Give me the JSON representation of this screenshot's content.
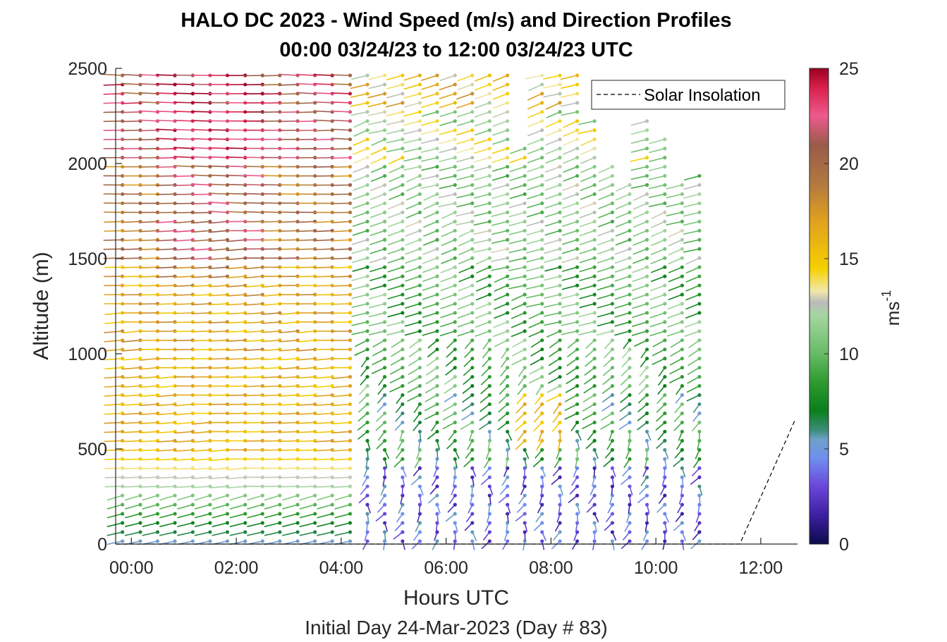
{
  "chart_data": {
    "type": "scatter",
    "subtype": "wind-barb-profile",
    "title_line1": "HALO DC 2023 - Wind Speed (m/s) and Direction Profiles",
    "title_line2": "00:00 03/24/23 to 12:00 03/24/23  UTC",
    "xlabel": "Hours UTC",
    "ylabel": "Altitude (m)",
    "subtitle": "Initial Day 24-Mar-2023 (Day # 83)",
    "colorbar_label": "ms",
    "colorbar_label_exp": "-1",
    "xlim": [
      -0.3,
      12.7
    ],
    "ylim": [
      0,
      2500
    ],
    "x_ticks": [
      "00:00",
      "02:00",
      "04:00",
      "06:00",
      "08:00",
      "10:00",
      "12:00"
    ],
    "x_tick_values": [
      0,
      2,
      4,
      6,
      8,
      10,
      12
    ],
    "y_ticks": [
      "0",
      "500",
      "1000",
      "1500",
      "2000",
      "2500"
    ],
    "y_tick_values": [
      0,
      500,
      1000,
      1500,
      2000,
      2500
    ],
    "colorbar_ticks": [
      "0",
      "5",
      "10",
      "15",
      "20",
      "25"
    ],
    "colorbar_tick_values": [
      0,
      5,
      10,
      15,
      20,
      25
    ],
    "colorbar_range": [
      0,
      25
    ],
    "grid": false,
    "legend": {
      "entries": [
        "Solar Insolation"
      ],
      "placement": "top-right",
      "style": "dashed-black"
    },
    "solar_insolation": {
      "x": [
        -0.3,
        11.6,
        12.65
      ],
      "y": [
        0,
        0,
        650
      ]
    },
    "profile_times_hours": [
      -0.17,
      0.17,
      0.5,
      0.83,
      1.17,
      1.5,
      1.83,
      2.17,
      2.5,
      2.83,
      3.17,
      3.5,
      3.83,
      4.17,
      4.5,
      4.83,
      5.17,
      5.5,
      5.83,
      6.17,
      6.5,
      6.83,
      7.17,
      7.5,
      7.83,
      8.17,
      8.5,
      8.83,
      9.17,
      9.5,
      9.83,
      10.17,
      10.5,
      10.83
    ],
    "range_gates_m": {
      "start": 15,
      "step": 48,
      "count": 52
    },
    "top_altitude_m": [
      2480,
      2480,
      2480,
      2480,
      2480,
      2480,
      2480,
      2480,
      2480,
      2480,
      2480,
      2480,
      2480,
      2480,
      2480,
      2480,
      2480,
      2480,
      2480,
      2480,
      2480,
      2480,
      2480,
      2100,
      2480,
      2480,
      2480,
      2250,
      2000,
      1900,
      2230,
      2170,
      1900,
      1950
    ],
    "speed_model_ms": {
      "night_before_4_5h": {
        "0-100m": 6,
        "100-300m": 9,
        "300-450m": 13,
        "450-1000m": 15.5,
        "1000-1500m": 16.5,
        "1500-2000m": 18,
        "2000-2300m": 21,
        "2300-2500m": 23
      },
      "after_4_5h": {
        "0-400m": 3.5,
        "400-800m": 8,
        "800-1500m": 9,
        "1500-2000m": 10.5,
        "2000-2300m": 12,
        "2300-2500m": 15
      }
    },
    "colormap_stops": [
      {
        "v": 0,
        "c": "#0c0c4a"
      },
      {
        "v": 1.5,
        "c": "#3c1fa0"
      },
      {
        "v": 3,
        "c": "#6a45d9"
      },
      {
        "v": 4.5,
        "c": "#6f8ff0"
      },
      {
        "v": 5.5,
        "c": "#6fa0c8"
      },
      {
        "v": 6,
        "c": "#3c8c78"
      },
      {
        "v": 7,
        "c": "#0a7f1c"
      },
      {
        "v": 8.5,
        "c": "#2e9a2e"
      },
      {
        "v": 10,
        "c": "#66bb66"
      },
      {
        "v": 12,
        "c": "#a5d6a0"
      },
      {
        "v": 12.7,
        "c": "#bbbbbb"
      },
      {
        "v": 13.3,
        "c": "#f2e8a8"
      },
      {
        "v": 14.5,
        "c": "#f5d000"
      },
      {
        "v": 17,
        "c": "#e0a020"
      },
      {
        "v": 19,
        "c": "#b07840"
      },
      {
        "v": 21,
        "c": "#9a5a4a"
      },
      {
        "v": 22.5,
        "c": "#ee5a8e"
      },
      {
        "v": 24,
        "c": "#d8204a"
      },
      {
        "v": 25,
        "c": "#9a0020"
      }
    ]
  }
}
